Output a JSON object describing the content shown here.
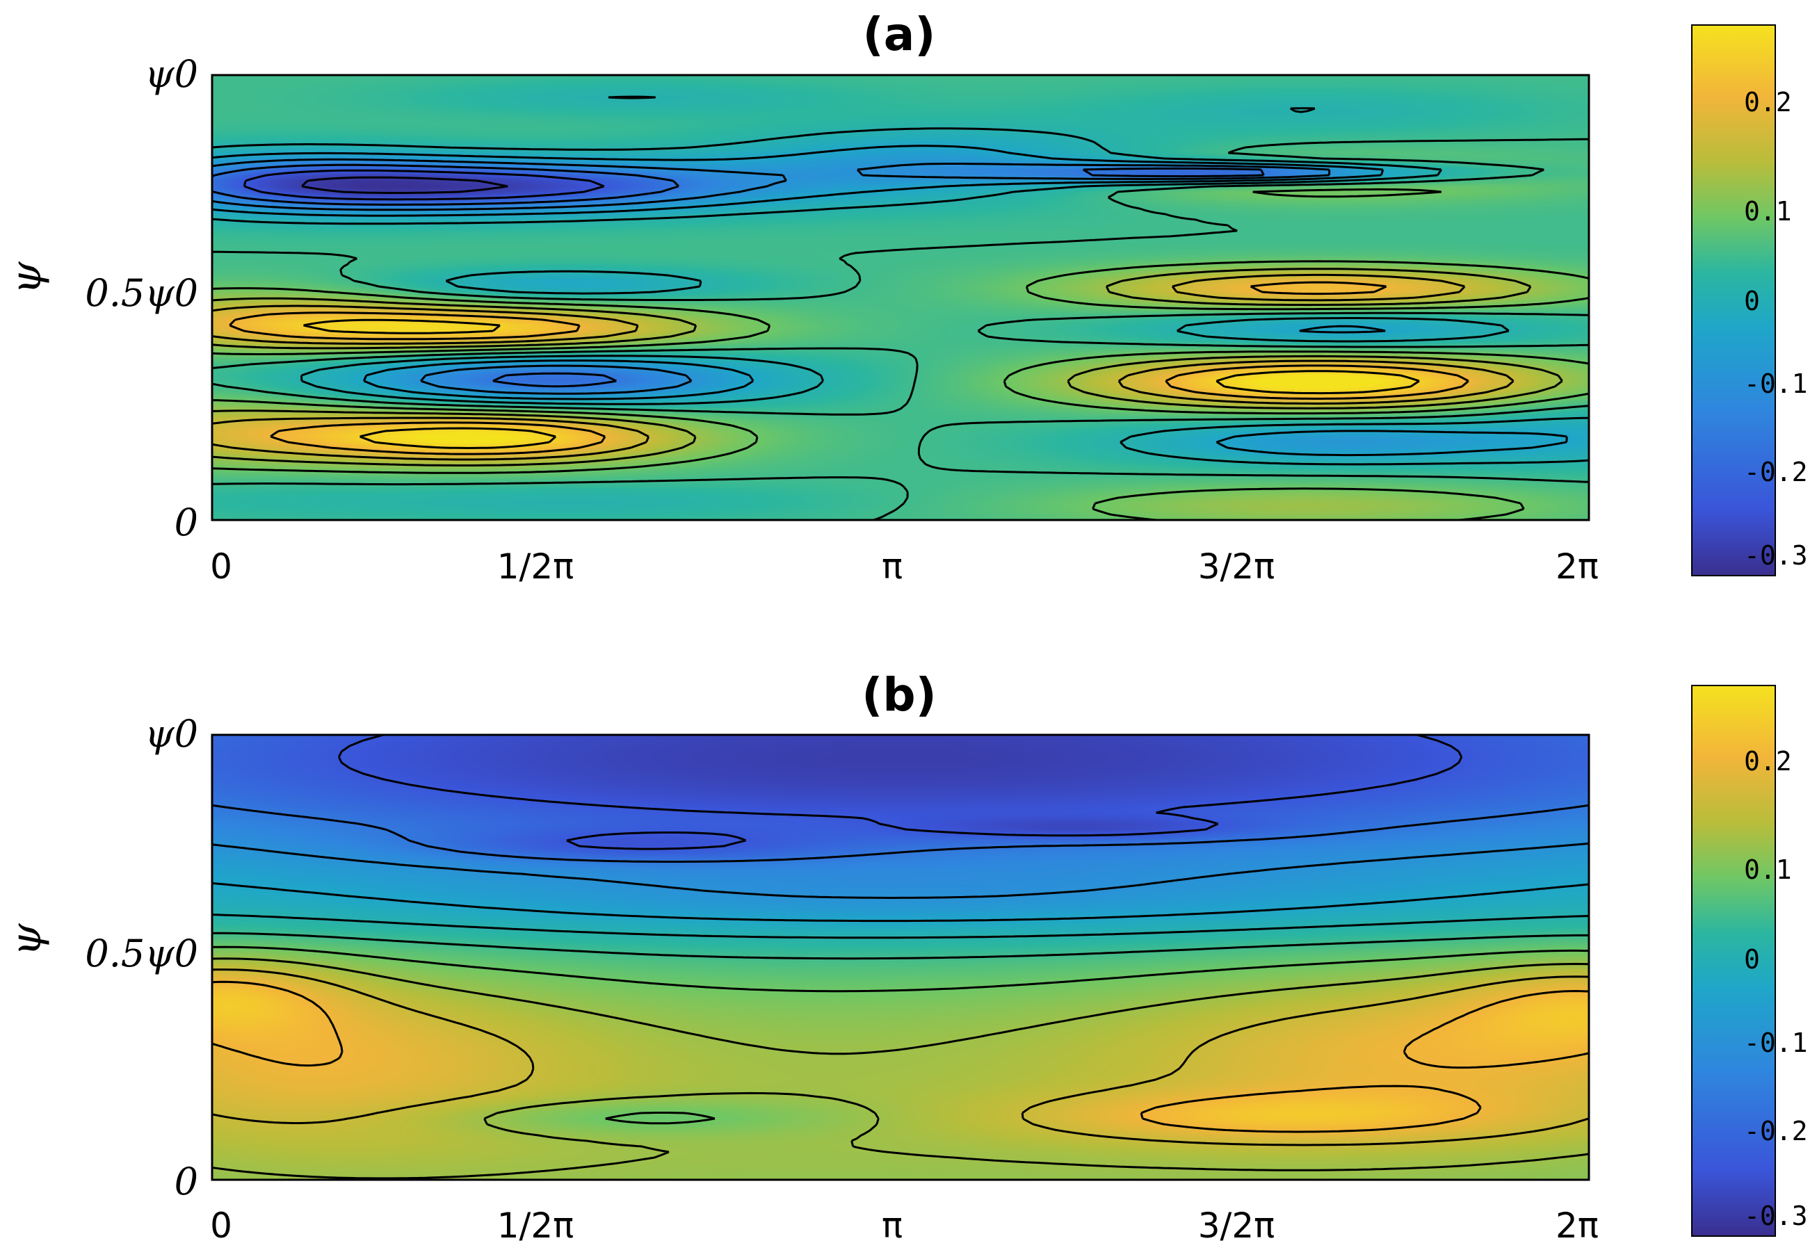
{
  "colors": {
    "colormap": [
      "#3a2f8f",
      "#3a55d9",
      "#2f86de",
      "#1fa6c9",
      "#2bb6a0",
      "#6fc765",
      "#b8bd3b",
      "#f2b53a",
      "#f5e21f"
    ],
    "contour_line": "#000000"
  },
  "chart_data": [
    {
      "type": "heatmap",
      "title": "(a)",
      "ylabel": "ψ",
      "x_ticks": [
        "0",
        "1/2π",
        "π",
        "3/2π",
        "2π"
      ],
      "y_ticks": [
        "0",
        "0.5ψ0",
        "ψ0"
      ],
      "xlim": [
        0,
        6.2832
      ],
      "ylim": [
        0,
        1
      ],
      "colorbar": {
        "ticks": [
          "0.2",
          "0.1",
          "0",
          "-0.1",
          "-0.2",
          "-0.3"
        ],
        "range": [
          -0.33,
          0.28
        ]
      },
      "levels": [
        -0.3,
        -0.25,
        -0.2,
        -0.15,
        -0.1,
        -0.05,
        0.0,
        0.05,
        0.1,
        0.15,
        0.2,
        0.25
      ],
      "background": 0.0,
      "features": [
        {
          "x": 0.15,
          "y": 0.05,
          "sx": 0.6,
          "sy": 0.05,
          "a": -0.02
        },
        {
          "x": 1.6,
          "y": 0.04,
          "sx": 1.2,
          "sy": 0.04,
          "a": -0.05
        },
        {
          "x": 5.0,
          "y": 0.03,
          "sx": 1.2,
          "sy": 0.05,
          "a": 0.1
        },
        {
          "x": 1.25,
          "y": 0.185,
          "sx": 0.95,
          "sy": 0.06,
          "a": 0.28
        },
        {
          "x": 0.0,
          "y": 0.2,
          "sx": 0.8,
          "sy": 0.08,
          "a": 0.12
        },
        {
          "x": 6.3,
          "y": 0.2,
          "sx": 0.6,
          "sy": 0.08,
          "a": -0.06
        },
        {
          "x": 1.55,
          "y": 0.315,
          "sx": 1.05,
          "sy": 0.06,
          "a": -0.22
        },
        {
          "x": 5.15,
          "y": 0.175,
          "sx": 1.0,
          "sy": 0.05,
          "a": -0.14
        },
        {
          "x": 5.05,
          "y": 0.31,
          "sx": 1.1,
          "sy": 0.06,
          "a": 0.3
        },
        {
          "x": 1.25,
          "y": 0.43,
          "sx": 1.05,
          "sy": 0.05,
          "a": 0.24
        },
        {
          "x": 0.2,
          "y": 0.45,
          "sx": 0.8,
          "sy": 0.07,
          "a": 0.14
        },
        {
          "x": 5.15,
          "y": 0.43,
          "sx": 0.9,
          "sy": 0.045,
          "a": -0.12
        },
        {
          "x": 5.05,
          "y": 0.52,
          "sx": 1.1,
          "sy": 0.05,
          "a": 0.22
        },
        {
          "x": 1.6,
          "y": 0.53,
          "sx": 0.8,
          "sy": 0.035,
          "a": -0.1
        },
        {
          "x": 1.35,
          "y": 0.75,
          "sx": 1.2,
          "sy": 0.06,
          "a": -0.27
        },
        {
          "x": 0.3,
          "y": 0.76,
          "sx": 0.8,
          "sy": 0.07,
          "a": -0.16
        },
        {
          "x": 3.3,
          "y": 0.8,
          "sx": 1.0,
          "sy": 0.08,
          "a": -0.13
        },
        {
          "x": 4.95,
          "y": 0.77,
          "sx": 1.2,
          "sy": 0.05,
          "a": 0.12
        },
        {
          "x": 4.7,
          "y": 0.78,
          "sx": 1.0,
          "sy": 0.025,
          "a": -0.32
        },
        {
          "x": 1.9,
          "y": 0.95,
          "sx": 1.0,
          "sy": 0.04,
          "a": -0.05
        },
        {
          "x": 5.0,
          "y": 0.92,
          "sx": 1.0,
          "sy": 0.05,
          "a": -0.05
        }
      ]
    },
    {
      "type": "heatmap",
      "title": "(b)",
      "ylabel": "ψ",
      "x_ticks": [
        "0",
        "1/2π",
        "π",
        "3/2π",
        "2π"
      ],
      "y_ticks": [
        "0",
        "0.5ψ0",
        "ψ0"
      ],
      "xlim": [
        0,
        6.2832
      ],
      "ylim": [
        0,
        1
      ],
      "colorbar": {
        "ticks": [
          "0.2",
          "0.1",
          "0",
          "-0.1",
          "-0.2",
          "-0.3"
        ],
        "range": [
          -0.33,
          0.28
        ]
      },
      "levels": [
        -0.25,
        -0.2,
        -0.15,
        -0.1,
        -0.05,
        0.0,
        0.05,
        0.1,
        0.15,
        0.2,
        0.25
      ],
      "background": 0.0,
      "features": [
        {
          "x": 3.14,
          "y": 0.02,
          "sx": 6.0,
          "sy": 0.25,
          "a": 0.085
        },
        {
          "x": 3.14,
          "y": 0.32,
          "sx": 6.0,
          "sy": 0.2,
          "a": 0.07
        },
        {
          "x": 0.4,
          "y": 0.28,
          "sx": 1.3,
          "sy": 0.22,
          "a": 0.12
        },
        {
          "x": 5.7,
          "y": 0.3,
          "sx": 1.5,
          "sy": 0.2,
          "a": 0.12
        },
        {
          "x": 4.8,
          "y": 0.14,
          "sx": 1.2,
          "sy": 0.06,
          "a": 0.1
        },
        {
          "x": 0.0,
          "y": 0.42,
          "sx": 0.6,
          "sy": 0.09,
          "a": 0.12
        },
        {
          "x": 6.3,
          "y": 0.4,
          "sx": 0.6,
          "sy": 0.1,
          "a": 0.1
        },
        {
          "x": 1.9,
          "y": 0.14,
          "sx": 0.9,
          "sy": 0.04,
          "a": -0.07
        },
        {
          "x": 3.14,
          "y": 0.62,
          "sx": 3.0,
          "sy": 0.08,
          "a": -0.06
        },
        {
          "x": 3.14,
          "y": 0.95,
          "sx": 6.0,
          "sy": 0.3,
          "a": -0.3
        },
        {
          "x": 1.9,
          "y": 0.75,
          "sx": 1.0,
          "sy": 0.04,
          "a": -0.07
        },
        {
          "x": 4.0,
          "y": 0.79,
          "sx": 0.8,
          "sy": 0.025,
          "a": -0.06
        }
      ]
    }
  ]
}
